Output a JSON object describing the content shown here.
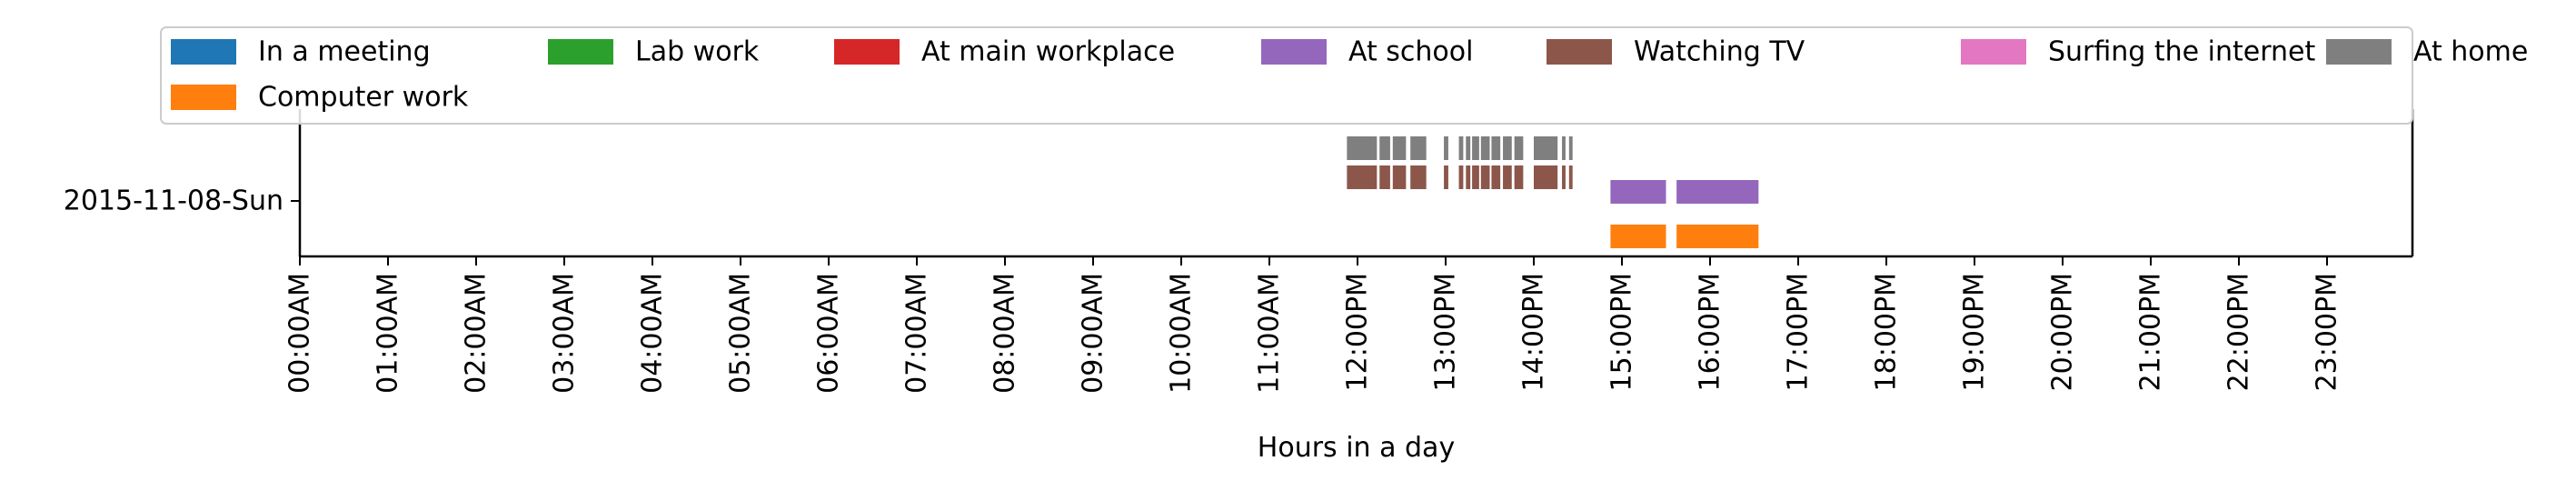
{
  "chart_data": {
    "type": "timeline",
    "xlabel": "Hours in a day",
    "ylabel": "",
    "xlim": [
      0,
      24
    ],
    "x_ticks": [
      "00:00AM",
      "01:00AM",
      "02:00AM",
      "03:00AM",
      "04:00AM",
      "05:00AM",
      "06:00AM",
      "07:00AM",
      "08:00AM",
      "09:00AM",
      "10:00AM",
      "11:00AM",
      "12:00PM",
      "13:00PM",
      "14:00PM",
      "15:00PM",
      "16:00PM",
      "17:00PM",
      "18:00PM",
      "19:00PM",
      "20:00PM",
      "21:00PM",
      "22:00PM",
      "23:00PM"
    ],
    "y_categories": [
      "2015-11-08-Sun"
    ],
    "grid": false,
    "legend": {
      "placement": "top",
      "entries": [
        {
          "name": "In a meeting",
          "color": "#1f77b4"
        },
        {
          "name": "Lab work",
          "color": "#2ca02c"
        },
        {
          "name": "At main workplace",
          "color": "#d62728"
        },
        {
          "name": "At school",
          "color": "#9467bd"
        },
        {
          "name": "Watching TV",
          "color": "#8c564b"
        },
        {
          "name": "Surfing the internet",
          "color": "#e377c2"
        },
        {
          "name": "At home",
          "color": "#7f7f7f"
        },
        {
          "name": "Computer work",
          "color": "#ff7f0e"
        }
      ]
    },
    "series": [
      {
        "name": "At home",
        "color": "#7f7f7f",
        "segments": [
          [
            11.88,
            12.22
          ],
          [
            12.25,
            12.37
          ],
          [
            12.4,
            12.55
          ],
          [
            12.6,
            12.78
          ],
          [
            12.98,
            13.03
          ],
          [
            13.15,
            13.2
          ],
          [
            13.23,
            13.28
          ],
          [
            13.3,
            13.38
          ],
          [
            13.4,
            13.5
          ],
          [
            13.52,
            13.62
          ],
          [
            13.65,
            13.75
          ],
          [
            13.78,
            13.88
          ],
          [
            14.0,
            14.27
          ],
          [
            14.32,
            14.36
          ],
          [
            14.4,
            14.44
          ]
        ]
      },
      {
        "name": "Watching TV",
        "color": "#8c564b",
        "segments": [
          [
            11.88,
            12.22
          ],
          [
            12.25,
            12.37
          ],
          [
            12.4,
            12.55
          ],
          [
            12.6,
            12.78
          ],
          [
            12.98,
            13.03
          ],
          [
            13.15,
            13.2
          ],
          [
            13.23,
            13.28
          ],
          [
            13.3,
            13.38
          ],
          [
            13.4,
            13.5
          ],
          [
            13.52,
            13.62
          ],
          [
            13.65,
            13.75
          ],
          [
            13.78,
            13.88
          ],
          [
            14.0,
            14.27
          ],
          [
            14.32,
            14.36
          ],
          [
            14.4,
            14.44
          ]
        ]
      },
      {
        "name": "At school",
        "color": "#9467bd",
        "segments": [
          [
            14.87,
            15.5
          ],
          [
            15.62,
            16.55
          ]
        ]
      },
      {
        "name": "Computer work",
        "color": "#ff7f0e",
        "segments": [
          [
            14.87,
            15.5
          ],
          [
            15.62,
            16.55
          ]
        ]
      }
    ]
  }
}
